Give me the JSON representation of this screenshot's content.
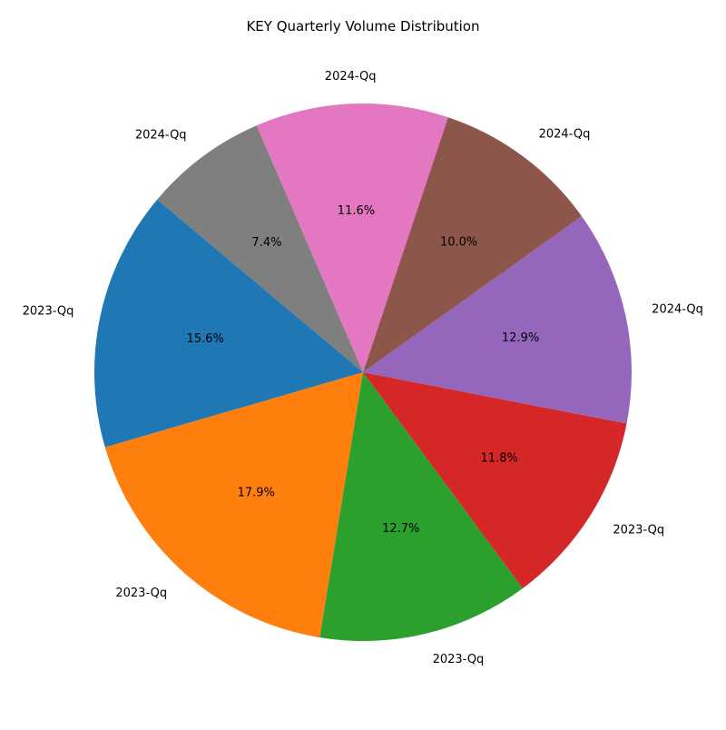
{
  "chart_data": {
    "type": "pie",
    "title": "KEY Quarterly Volume Distribution",
    "labels": [
      "2023-Qq",
      "2023-Qq",
      "2023-Qq",
      "2023-Qq",
      "2024-Qq",
      "2024-Qq",
      "2024-Qq",
      "2024-Qq"
    ],
    "values": [
      15.6,
      17.9,
      12.7,
      11.8,
      12.9,
      10.0,
      11.6,
      7.4
    ],
    "percent_labels": [
      "15.6%",
      "17.9%",
      "12.7%",
      "11.8%",
      "12.9%",
      "10.0%",
      "11.6%",
      "7.4%"
    ],
    "colors": [
      "#1f77b4",
      "#ff7f0e",
      "#2ca02c",
      "#d62728",
      "#9467bd",
      "#8c564b",
      "#e377c2",
      "#7f7f7f"
    ],
    "start_angle_deg": 140,
    "direction": "counterclockwise"
  }
}
